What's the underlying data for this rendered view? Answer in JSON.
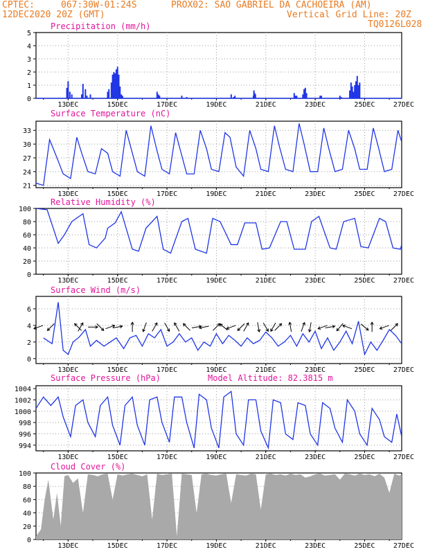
{
  "header": {
    "line1_left": "CPTEC:",
    "line1_coords": "067:30W-01:24S",
    "line1_station": "PROX02: SAO GABRIEL DA CACHOEIRA (AM)",
    "line2_left": "12DEC2020 20Z (GMT)",
    "line2_right": "Vertical Grid Line: 20Z",
    "line3_right": "TQ0126L028"
  },
  "colors": {
    "header": "#e87b22",
    "title": "#e0159a",
    "series": "#1f35e6",
    "cloud": "#a9a9a9",
    "grid": "#9a9a9a"
  },
  "x_tick_labels": [
    "13DEC",
    "15DEC",
    "17DEC",
    "19DEC",
    "21DEC",
    "23DEC",
    "25DEC",
    "27DEC"
  ],
  "chart_data": [
    {
      "type": "bar",
      "title": "Precipitation (mm/h)",
      "ylim": [
        0,
        5
      ],
      "yticks": [
        "0",
        "1",
        "2",
        "3",
        "4",
        "5"
      ],
      "x_days": [
        0.95,
        1.0,
        1.07,
        1.15,
        1.55,
        1.6,
        1.7,
        1.76,
        1.9,
        2.6,
        2.65,
        2.75,
        2.8,
        2.85,
        2.9,
        2.95,
        3.0,
        3.05,
        3.1,
        3.15,
        3.2,
        4.6,
        4.65,
        4.7,
        5.6,
        5.8,
        7.6,
        7.7,
        7.75,
        8.5,
        8.52,
        8.55,
        8.58,
        10.15,
        10.2,
        10.25,
        10.5,
        10.55,
        10.6,
        10.65,
        11.2,
        11.25,
        12.0,
        12.05,
        12.4,
        12.45,
        12.5,
        12.55,
        12.6,
        12.65,
        12.7,
        12.75,
        12.8
      ],
      "values": [
        0.8,
        1.3,
        0.5,
        0.3,
        0.3,
        1.1,
        0.7,
        0.2,
        0.3,
        0.5,
        0.7,
        1.2,
        1.8,
        2.0,
        1.9,
        2.2,
        2.4,
        1.8,
        0.9,
        0.3,
        0.2,
        0.5,
        0.3,
        0.2,
        0.2,
        0.1,
        0.3,
        0.1,
        0.2,
        0.2,
        0.6,
        0.4,
        0.3,
        0.4,
        0.2,
        0.2,
        0.3,
        0.7,
        0.8,
        0.4,
        0.2,
        0.2,
        0.2,
        0.1,
        0.6,
        1.2,
        0.9,
        0.5,
        1.0,
        1.3,
        1.7,
        1.0,
        1.2
      ]
    },
    {
      "type": "line",
      "title": "Surface Temperature (nC)",
      "ylim": [
        20.5,
        35
      ],
      "yticks": [
        "21",
        "24",
        "27",
        "30",
        "33"
      ],
      "x_days": [
        -0.3,
        0.0,
        0.25,
        0.55,
        0.8,
        1.1,
        1.35,
        1.55,
        1.8,
        2.1,
        2.35,
        2.6,
        2.8,
        3.1,
        3.35,
        3.55,
        3.8,
        4.1,
        4.35,
        4.6,
        4.8,
        5.1,
        5.35,
        5.55,
        5.8,
        6.1,
        6.35,
        6.6,
        6.8,
        7.1,
        7.35,
        7.55,
        7.8,
        8.1,
        8.35,
        8.6,
        8.8,
        9.1,
        9.35,
        9.55,
        9.8,
        10.1,
        10.35,
        10.55,
        10.8,
        11.1,
        11.35,
        11.55,
        11.8,
        12.1,
        12.35,
        12.6,
        12.8,
        13.1,
        13.35,
        13.55,
        13.8,
        14.1,
        14.35,
        14.5
      ],
      "values": [
        21.5,
        21.0,
        31.0,
        27.0,
        23.5,
        22.5,
        31.5,
        28.0,
        24.0,
        23.5,
        29.0,
        28.0,
        24.0,
        23.0,
        33.0,
        29.0,
        24.0,
        23.0,
        34.0,
        28.5,
        24.5,
        23.5,
        32.5,
        28.5,
        23.5,
        23.5,
        33.0,
        29.0,
        24.5,
        24.0,
        32.5,
        31.5,
        25.0,
        23.0,
        33.0,
        29.0,
        24.5,
        24.0,
        34.0,
        29.5,
        24.5,
        24.0,
        34.5,
        30.0,
        24.0,
        24.0,
        33.5,
        29.0,
        24.0,
        24.5,
        33.0,
        29.0,
        24.5,
        24.5,
        33.5,
        29.5,
        24.0,
        24.5,
        33.0,
        30.5
      ]
    },
    {
      "type": "line",
      "title": "Relative Humidity (%)",
      "ylim": [
        0,
        100
      ],
      "yticks": [
        "0",
        "20",
        "40",
        "60",
        "80",
        "100"
      ],
      "x_days": [
        -0.3,
        0.15,
        0.6,
        0.85,
        1.15,
        1.6,
        1.85,
        2.15,
        2.5,
        2.6,
        2.9,
        3.15,
        3.6,
        3.85,
        4.15,
        4.6,
        4.85,
        5.15,
        5.6,
        5.85,
        6.15,
        6.6,
        6.85,
        7.15,
        7.6,
        7.85,
        8.15,
        8.6,
        8.85,
        9.15,
        9.6,
        9.85,
        10.15,
        10.6,
        10.85,
        11.15,
        11.6,
        11.85,
        12.15,
        12.6,
        12.85,
        13.15,
        13.6,
        13.85,
        14.15,
        14.45,
        14.5
      ],
      "values": [
        100,
        98,
        47,
        60,
        80,
        92,
        45,
        40,
        55,
        70,
        78,
        95,
        38,
        35,
        70,
        88,
        38,
        32,
        80,
        85,
        38,
        32,
        85,
        80,
        45,
        45,
        78,
        78,
        38,
        40,
        80,
        80,
        38,
        38,
        80,
        88,
        40,
        38,
        80,
        85,
        42,
        40,
        85,
        80,
        40,
        38,
        45
      ]
    },
    {
      "type": "line",
      "title": "Surface Wind (m/s)",
      "ylim": [
        -0.6,
        7.5
      ],
      "yticks": [
        "0",
        "2",
        "4",
        "6"
      ],
      "x_days": [
        0.0,
        0.35,
        0.6,
        0.8,
        1.0,
        1.2,
        1.45,
        1.7,
        1.9,
        2.15,
        2.45,
        2.7,
        2.95,
        3.25,
        3.5,
        3.75,
        4.0,
        4.25,
        4.5,
        4.75,
        5.0,
        5.25,
        5.5,
        5.75,
        6.0,
        6.25,
        6.5,
        6.75,
        7.0,
        7.25,
        7.5,
        7.75,
        8.0,
        8.25,
        8.5,
        8.75,
        9.0,
        9.25,
        9.5,
        9.75,
        10.0,
        10.25,
        10.5,
        10.75,
        11.0,
        11.25,
        11.5,
        11.75,
        12.0,
        12.25,
        12.5,
        12.75,
        13.0,
        13.25,
        13.5,
        13.75,
        14.0,
        14.25,
        14.5
      ],
      "values": [
        2.5,
        1.8,
        6.8,
        1.0,
        0.5,
        2.0,
        2.6,
        3.5,
        1.5,
        2.2,
        1.5,
        2.0,
        2.5,
        1.2,
        2.5,
        2.8,
        1.5,
        3.0,
        2.5,
        3.5,
        1.5,
        2.0,
        3.0,
        2.0,
        2.5,
        1.0,
        2.0,
        1.5,
        3.0,
        1.8,
        2.8,
        2.2,
        1.5,
        2.5,
        1.8,
        2.2,
        3.2,
        2.5,
        1.5,
        2.0,
        2.8,
        1.5,
        3.0,
        2.0,
        3.3,
        1.2,
        2.5,
        1.0,
        2.0,
        3.3,
        1.8,
        4.5,
        0.5,
        2.0,
        1.0,
        2.2,
        3.5,
        2.8,
        1.8
      ]
    },
    {
      "type": "line",
      "title": "Surface Pressure (hPa)",
      "annotation": "Model Altitude: 82.3815 m",
      "ylim": [
        993,
        1004.5
      ],
      "yticks": [
        "994",
        "996",
        "998",
        "1000",
        "1002",
        "1004"
      ],
      "x_days": [
        -0.3,
        0.0,
        0.3,
        0.6,
        0.8,
        1.1,
        1.3,
        1.6,
        1.8,
        2.1,
        2.3,
        2.6,
        2.8,
        3.1,
        3.3,
        3.6,
        3.8,
        4.1,
        4.3,
        4.6,
        4.8,
        5.1,
        5.3,
        5.6,
        5.8,
        6.1,
        6.3,
        6.6,
        6.8,
        7.1,
        7.3,
        7.6,
        7.8,
        8.1,
        8.3,
        8.6,
        8.8,
        9.1,
        9.3,
        9.6,
        9.8,
        10.1,
        10.3,
        10.6,
        10.8,
        11.1,
        11.3,
        11.6,
        11.8,
        12.1,
        12.3,
        12.6,
        12.8,
        13.1,
        13.3,
        13.6,
        13.8,
        14.1,
        14.3,
        14.5
      ],
      "values": [
        1000.5,
        1002.5,
        1001.0,
        1002.5,
        999.0,
        995.5,
        1001.0,
        1002.0,
        998.0,
        995.5,
        1001.0,
        1002.5,
        997.5,
        994.0,
        1001.0,
        1002.5,
        997.5,
        994.0,
        1002.0,
        1002.5,
        998.0,
        994.5,
        1002.5,
        1002.5,
        998.0,
        993.5,
        1003.0,
        1002.0,
        997.0,
        993.5,
        1002.5,
        1003.5,
        996.0,
        994.0,
        1002.0,
        1002.0,
        996.5,
        993.5,
        1002.0,
        1001.5,
        996.0,
        995.0,
        1001.5,
        1001.0,
        996.0,
        994.0,
        1001.5,
        1000.5,
        997.0,
        994.5,
        1002.0,
        1000.0,
        996.0,
        994.0,
        1000.5,
        998.5,
        995.5,
        994.5,
        999.5,
        995.5
      ]
    },
    {
      "type": "area",
      "title": "Cloud Cover (%)",
      "ylim": [
        0,
        100
      ],
      "yticks": [
        "0",
        "20",
        "40",
        "60",
        "80",
        "100"
      ],
      "x_days": [
        -0.3,
        -0.1,
        0.05,
        0.2,
        0.4,
        0.55,
        0.7,
        0.85,
        1.0,
        1.2,
        1.4,
        1.6,
        1.8,
        2.0,
        2.2,
        2.4,
        2.6,
        2.8,
        3.0,
        3.2,
        3.4,
        3.6,
        3.8,
        4.0,
        4.2,
        4.4,
        4.6,
        4.8,
        5.0,
        5.2,
        5.4,
        5.6,
        5.8,
        6.0,
        6.2,
        6.4,
        6.6,
        6.8,
        7.0,
        7.2,
        7.4,
        7.6,
        7.8,
        8.0,
        8.2,
        8.4,
        8.6,
        8.8,
        9.0,
        9.2,
        9.4,
        9.6,
        9.8,
        10.0,
        10.2,
        10.4,
        10.6,
        10.8,
        11.0,
        11.2,
        11.4,
        11.6,
        11.8,
        12.0,
        12.2,
        12.4,
        12.6,
        12.8,
        13.0,
        13.2,
        13.4,
        13.6,
        13.8,
        14.0,
        14.2,
        14.4,
        14.5
      ],
      "values": [
        5,
        15,
        60,
        90,
        30,
        70,
        20,
        95,
        97,
        85,
        92,
        40,
        98,
        97,
        95,
        98,
        99,
        60,
        98,
        96,
        98,
        99,
        97,
        95,
        98,
        30,
        99,
        97,
        98,
        99,
        5,
        99,
        98,
        97,
        40,
        98,
        99,
        97,
        96,
        98,
        99,
        55,
        98,
        97,
        96,
        99,
        98,
        45,
        98,
        99,
        97,
        98,
        96,
        99,
        97,
        98,
        93,
        95,
        98,
        99,
        96,
        97,
        98,
        90,
        99,
        98,
        96,
        99,
        97,
        98,
        95,
        99,
        93,
        70,
        99,
        96,
        98
      ]
    }
  ]
}
